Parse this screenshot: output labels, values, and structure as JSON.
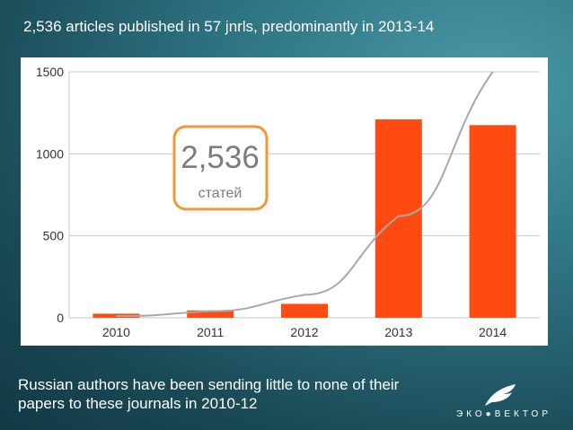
{
  "slide": {
    "title": "2,536 articles published in 57 jnrls, predominantly in 2013-14",
    "caption": "Russian authors have been sending little to none of their papers to these journals in 2010-12",
    "logo_text": "ЭКО●ВЕКТОР"
  },
  "chart_data": {
    "type": "bar",
    "categories": [
      "2010",
      "2011",
      "2012",
      "2013",
      "2014"
    ],
    "values": [
      25,
      45,
      85,
      1210,
      1175
    ],
    "ylim": [
      0,
      1500
    ],
    "yticks": [
      0,
      500,
      1000,
      1500
    ],
    "grid": true,
    "bar_color": "#ff4a12",
    "trend_line": {
      "type": "exponential",
      "color": "#a8a8a8",
      "points": [
        [
          2010,
          10
        ],
        [
          2011,
          40
        ],
        [
          2012,
          140
        ],
        [
          2013,
          620
        ],
        [
          2014,
          1500
        ]
      ]
    },
    "annotation": {
      "number": "2,536",
      "label": "статей",
      "border_color": "#f5953a"
    }
  }
}
